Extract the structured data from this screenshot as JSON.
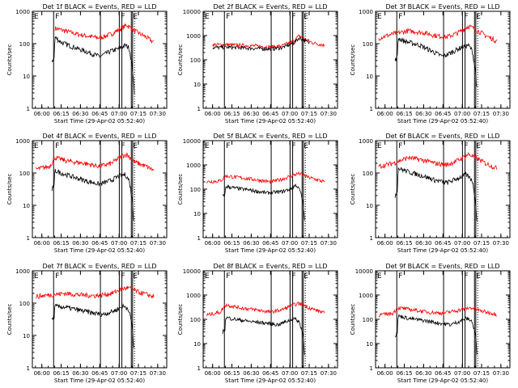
{
  "chart_data": {
    "type": "line",
    "y_scale": "log",
    "ylim": [
      1,
      1000
    ],
    "xlim": [
      "05:52:40",
      "07:37:00"
    ],
    "x_tick_labels": [
      "06:00",
      "06:15",
      "06:30",
      "06:45",
      "07:00",
      "07:15",
      "07:30"
    ],
    "y_tick_labels": [
      "1",
      "10",
      "100",
      "1000"
    ],
    "y_tick_labels_alt": [
      "1",
      "10",
      "100",
      "1000",
      "10000"
    ],
    "ylabel": "Counts/sec",
    "xlabel": "Start Time (29-Apr-02 05:52:40)",
    "colors": {
      "events": "#000000",
      "lld": "#ff0000"
    },
    "series_labels": {
      "events": "Events",
      "lld": "LLD"
    },
    "markers": [
      {
        "time": "06:09:10",
        "label": "F"
      },
      {
        "time": "06:45:30",
        "label": ""
      },
      {
        "time": "07:00:10",
        "label": "F"
      },
      {
        "time": "07:02:10",
        "label": ""
      },
      {
        "time": "07:09:30",
        "label": "E"
      },
      {
        "time": "07:10:30",
        "label": ""
      }
    ],
    "panels": [
      {
        "det": "1",
        "title": "Det 1f BLACK = Events, RED = LLD",
        "ymax": 1000,
        "events": [
          [
            6.13,
            30
          ],
          [
            6.16,
            35
          ],
          [
            6.17,
            160
          ],
          [
            6.25,
            110
          ],
          [
            6.4,
            80
          ],
          [
            6.55,
            60
          ],
          [
            6.75,
            40
          ],
          [
            6.9,
            60
          ],
          [
            7.0,
            70
          ],
          [
            7.08,
            90
          ],
          [
            7.13,
            75
          ],
          [
            7.17,
            20
          ],
          [
            7.2,
            3
          ]
        ],
        "lld": [
          [
            6.17,
            300
          ],
          [
            6.3,
            250
          ],
          [
            6.45,
            200
          ],
          [
            6.6,
            170
          ],
          [
            6.75,
            150
          ],
          [
            6.9,
            200
          ],
          [
            7.05,
            320
          ],
          [
            7.1,
            380
          ],
          [
            7.2,
            250
          ],
          [
            7.35,
            160
          ],
          [
            7.45,
            110
          ]
        ],
        "start_lld": 6.17
      },
      {
        "det": "2",
        "title": "Det 2f BLACK = Events, RED = LLD",
        "ymax": 10000,
        "events": [
          [
            6.0,
            320
          ],
          [
            6.2,
            330
          ],
          [
            6.5,
            300
          ],
          [
            6.75,
            280
          ],
          [
            6.9,
            320
          ],
          [
            7.05,
            500
          ],
          [
            7.12,
            800
          ],
          [
            7.18,
            650
          ],
          [
            7.25,
            500
          ]
        ],
        "lld": [
          [
            6.0,
            420
          ],
          [
            6.2,
            420
          ],
          [
            6.5,
            380
          ],
          [
            6.75,
            340
          ],
          [
            6.9,
            380
          ],
          [
            7.05,
            600
          ],
          [
            7.12,
            1000
          ],
          [
            7.2,
            700
          ],
          [
            7.3,
            500
          ],
          [
            7.45,
            400
          ]
        ],
        "start_lld": 6.0
      },
      {
        "det": "3",
        "title": "Det 3f BLACK = Events, RED = LLD",
        "ymax": 1000,
        "events": [
          [
            6.13,
            30
          ],
          [
            6.16,
            40
          ],
          [
            6.17,
            150
          ],
          [
            6.25,
            120
          ],
          [
            6.45,
            90
          ],
          [
            6.6,
            60
          ],
          [
            6.75,
            40
          ],
          [
            6.9,
            60
          ],
          [
            7.0,
            80
          ],
          [
            7.08,
            90
          ],
          [
            7.13,
            60
          ],
          [
            7.17,
            15
          ],
          [
            7.19,
            4
          ]
        ],
        "lld": [
          [
            5.92,
            150
          ],
          [
            6.1,
            200
          ],
          [
            6.3,
            250
          ],
          [
            6.5,
            220
          ],
          [
            6.65,
            180
          ],
          [
            6.8,
            160
          ],
          [
            6.95,
            220
          ],
          [
            7.08,
            350
          ],
          [
            7.15,
            300
          ],
          [
            7.3,
            180
          ],
          [
            7.45,
            120
          ]
        ],
        "start_lld": 5.92
      },
      {
        "det": "4",
        "title": "Det 4f BLACK = Events, RED = LLD",
        "ymax": 1000,
        "events": [
          [
            6.13,
            30
          ],
          [
            6.16,
            40
          ],
          [
            6.17,
            120
          ],
          [
            6.25,
            100
          ],
          [
            6.45,
            70
          ],
          [
            6.6,
            55
          ],
          [
            6.75,
            45
          ],
          [
            6.9,
            60
          ],
          [
            7.0,
            80
          ],
          [
            7.08,
            90
          ],
          [
            7.13,
            60
          ],
          [
            7.17,
            15
          ],
          [
            7.19,
            4
          ]
        ],
        "lld": [
          [
            5.92,
            130
          ],
          [
            6.1,
            160
          ],
          [
            6.17,
            300
          ],
          [
            6.35,
            230
          ],
          [
            6.55,
            200
          ],
          [
            6.75,
            160
          ],
          [
            6.9,
            200
          ],
          [
            7.05,
            350
          ],
          [
            7.1,
            380
          ],
          [
            7.2,
            220
          ],
          [
            7.35,
            160
          ],
          [
            7.45,
            120
          ]
        ],
        "start_lld": 5.92
      },
      {
        "det": "5",
        "title": "Det 5f BLACK = Events, RED = LLD",
        "ymax": 10000,
        "events": [
          [
            6.13,
            50
          ],
          [
            6.16,
            60
          ],
          [
            6.17,
            130
          ],
          [
            6.3,
            110
          ],
          [
            6.5,
            90
          ],
          [
            6.7,
            70
          ],
          [
            6.9,
            80
          ],
          [
            7.0,
            100
          ],
          [
            7.08,
            150
          ],
          [
            7.13,
            90
          ],
          [
            7.17,
            30
          ],
          [
            7.19,
            5
          ]
        ],
        "lld": [
          [
            5.92,
            200
          ],
          [
            6.1,
            220
          ],
          [
            6.17,
            350
          ],
          [
            6.35,
            300
          ],
          [
            6.55,
            250
          ],
          [
            6.75,
            200
          ],
          [
            6.9,
            260
          ],
          [
            7.05,
            380
          ],
          [
            7.12,
            450
          ],
          [
            7.25,
            300
          ],
          [
            7.45,
            200
          ]
        ],
        "start_lld": 5.92
      },
      {
        "det": "6",
        "title": "Det 6f BLACK = Events, RED = LLD",
        "ymax": 1000,
        "events": [
          [
            6.13,
            20
          ],
          [
            6.16,
            30
          ],
          [
            6.17,
            140
          ],
          [
            6.3,
            110
          ],
          [
            6.5,
            80
          ],
          [
            6.65,
            60
          ],
          [
            6.8,
            50
          ],
          [
            6.95,
            70
          ],
          [
            7.05,
            90
          ],
          [
            7.13,
            60
          ],
          [
            7.17,
            15
          ],
          [
            7.19,
            3
          ]
        ],
        "lld": [
          [
            5.92,
            160
          ],
          [
            6.1,
            200
          ],
          [
            6.3,
            300
          ],
          [
            6.5,
            250
          ],
          [
            6.65,
            200
          ],
          [
            6.8,
            180
          ],
          [
            6.95,
            250
          ],
          [
            7.08,
            380
          ],
          [
            7.15,
            320
          ],
          [
            7.3,
            200
          ],
          [
            7.45,
            140
          ]
        ],
        "start_lld": 5.92
      },
      {
        "det": "7",
        "title": "Det 7f BLACK = Events, RED = LLD",
        "ymax": 1000,
        "events": [
          [
            6.13,
            30
          ],
          [
            6.16,
            40
          ],
          [
            6.17,
            80
          ],
          [
            6.3,
            75
          ],
          [
            6.5,
            60
          ],
          [
            6.65,
            50
          ],
          [
            6.8,
            45
          ],
          [
            6.95,
            60
          ],
          [
            7.05,
            80
          ],
          [
            7.12,
            70
          ],
          [
            7.17,
            20
          ],
          [
            7.19,
            4
          ]
        ],
        "lld": [
          [
            5.92,
            160
          ],
          [
            6.1,
            180
          ],
          [
            6.3,
            200
          ],
          [
            6.5,
            180
          ],
          [
            6.7,
            170
          ],
          [
            6.9,
            200
          ],
          [
            7.05,
            280
          ],
          [
            7.12,
            300
          ],
          [
            7.25,
            220
          ],
          [
            7.45,
            160
          ]
        ],
        "start_lld": 5.92
      },
      {
        "det": "8",
        "title": "Det 8f BLACK = Events, RED = LLD",
        "ymax": 10000,
        "events": [
          [
            6.13,
            30
          ],
          [
            6.16,
            40
          ],
          [
            6.17,
            120
          ],
          [
            6.3,
            100
          ],
          [
            6.5,
            80
          ],
          [
            6.7,
            70
          ],
          [
            6.85,
            60
          ],
          [
            6.95,
            80
          ],
          [
            7.05,
            110
          ],
          [
            7.12,
            80
          ],
          [
            7.17,
            25
          ],
          [
            7.19,
            4
          ]
        ],
        "lld": [
          [
            5.92,
            150
          ],
          [
            6.1,
            200
          ],
          [
            6.17,
            400
          ],
          [
            6.35,
            300
          ],
          [
            6.55,
            250
          ],
          [
            6.75,
            200
          ],
          [
            6.9,
            250
          ],
          [
            7.05,
            400
          ],
          [
            7.12,
            450
          ],
          [
            7.25,
            300
          ],
          [
            7.45,
            180
          ]
        ],
        "start_lld": 5.92
      },
      {
        "det": "9",
        "title": "Det 9f BLACK = Events, RED = LLD",
        "ymax": 10000,
        "events": [
          [
            6.13,
            20
          ],
          [
            6.16,
            30
          ],
          [
            6.17,
            140
          ],
          [
            6.3,
            110
          ],
          [
            6.5,
            90
          ],
          [
            6.7,
            70
          ],
          [
            6.85,
            60
          ],
          [
            6.95,
            80
          ],
          [
            7.05,
            110
          ],
          [
            7.12,
            90
          ],
          [
            7.17,
            25
          ],
          [
            7.19,
            4
          ]
        ],
        "lld": [
          [
            5.92,
            150
          ],
          [
            6.1,
            180
          ],
          [
            6.17,
            300
          ],
          [
            6.35,
            250
          ],
          [
            6.55,
            200
          ],
          [
            6.75,
            180
          ],
          [
            6.9,
            220
          ],
          [
            7.05,
            280
          ],
          [
            7.12,
            300
          ],
          [
            7.25,
            220
          ],
          [
            7.45,
            160
          ]
        ],
        "start_lld": 5.92
      }
    ]
  }
}
